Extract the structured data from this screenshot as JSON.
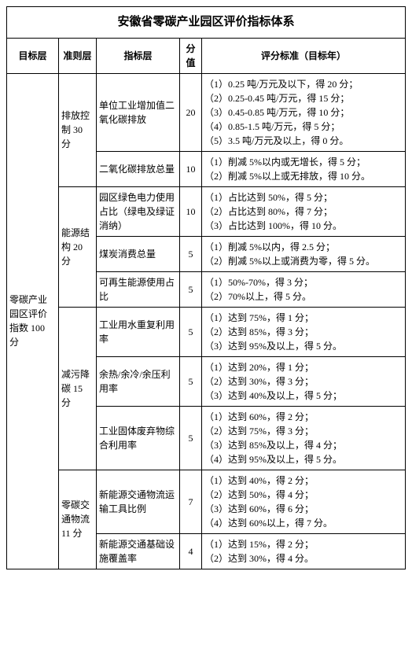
{
  "title": "安徽省零碳产业园区评价指标体系",
  "headers": {
    "col1": "目标层",
    "col2": "准则层",
    "col3": "指标层",
    "col4": "分值",
    "col5": "评分标准（目标年）"
  },
  "goal": "零碳产业园区评价指数 100 分",
  "criteria": {
    "c1": "排放控制 30 分",
    "c2": "能源结构 20 分",
    "c3": "减污降碳 15 分",
    "c4": "零碳交通物流 11 分"
  },
  "rows": {
    "r1": {
      "ind": "单位工业增加值二氧化碳排放",
      "score": "20",
      "std": "（1）0.25 吨/万元及以下，得 20 分；\n（2）0.25-0.45 吨/万元，得 15 分；\n（3）0.45-0.85 吨/万元，得 10 分；\n（4）0.85-1.5 吨/万元，得 5 分；\n（5）3.5 吨/万元及以上，得 0 分。"
    },
    "r2": {
      "ind": "二氧化碳排放总量",
      "score": "10",
      "std": "（1）削减 5%以内或无增长，得 5 分；\n（2）削减 5%以上或无排放，得 10 分。"
    },
    "r3": {
      "ind": "园区绿色电力使用占比（绿电及绿证消纳）",
      "score": "10",
      "std": "（1）占比达到 50%，得 5 分；\n（2）占比达到 80%，得 7 分；\n（3）占比达到 100%，得 10 分。"
    },
    "r4": {
      "ind": "煤炭消费总量",
      "score": "5",
      "std": "（1）削减 5%以内，得 2.5 分；\n（2）削减 5%以上或消费为零，得 5 分。"
    },
    "r5": {
      "ind": "可再生能源使用占比",
      "score": "5",
      "std": "（1）50%-70%，得 3 分；\n（2）70%以上，得 5 分。"
    },
    "r6": {
      "ind": "工业用水重复利用率",
      "score": "5",
      "std": "（1）达到 75%，得 1 分；\n（2）达到 85%，得 3 分；\n（3）达到 95%及以上，得 5 分。"
    },
    "r7": {
      "ind": "余热/余冷/余压利用率",
      "score": "5",
      "std": "（1）达到 20%，得 1 分；\n（2）达到 30%，得 3 分；\n（3）达到 40%及以上，得 5 分；"
    },
    "r8": {
      "ind": "工业固体废弃物综合利用率",
      "score": "5",
      "std": "（1）达到 60%，得 2 分；\n（2）达到 75%，得 3 分；\n（3）达到 85%及以上，得 4 分；\n（4）达到 95%及以上，得 5 分。"
    },
    "r9": {
      "ind": "新能源交通物流运输工具比例",
      "score": "7",
      "std": "（1）达到 40%，得 2 分；\n（2）达到 50%，得 4 分；\n（3）达到 60%，得 6 分；\n（4）达到 60%以上，得 7 分。"
    },
    "r10": {
      "ind": "新能源交通基础设施覆盖率",
      "score": "4",
      "std": "（1）达到 15%，得 2 分；\n（2）达到 30%，得 4 分。"
    }
  }
}
